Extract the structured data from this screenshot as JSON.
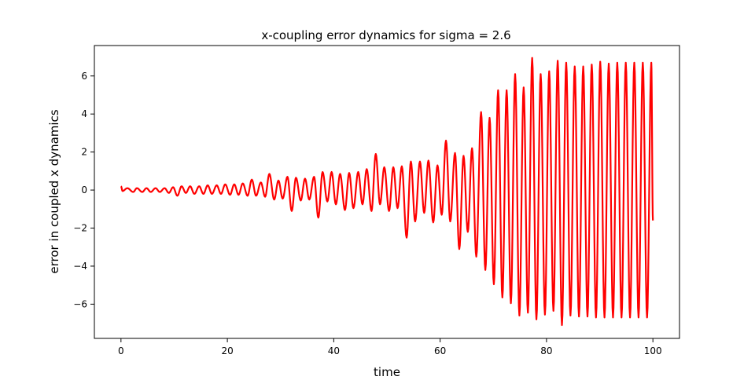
{
  "chart_data": {
    "type": "line",
    "title": "x-coupling error dynamics for sigma = 2.6",
    "xlabel": "time",
    "ylabel": "error in coupled x dynamics",
    "xlim": [
      -5,
      105
    ],
    "ylim": [
      -7.8,
      7.6
    ],
    "xticks": [
      0,
      20,
      40,
      60,
      80,
      100
    ],
    "yticks": [
      -6,
      -4,
      -2,
      0,
      2,
      4,
      6
    ],
    "xtick_labels": [
      "0",
      "20",
      "40",
      "60",
      "80",
      "100"
    ],
    "ytick_labels": [
      "−6",
      "−4",
      "−2",
      "0",
      "2",
      "4",
      "6"
    ],
    "grid": false,
    "series": [
      {
        "color": "#ff0000",
        "x_start": 0,
        "x_end": 100,
        "final_value": -1.6,
        "peaks": [
          [
            0.0,
            0.2
          ],
          [
            0.3,
            -0.05
          ],
          [
            1.2,
            0.1
          ],
          [
            2.3,
            -0.1
          ],
          [
            3.0,
            0.1
          ],
          [
            4.0,
            -0.1
          ],
          [
            4.8,
            0.1
          ],
          [
            5.6,
            -0.1
          ],
          [
            6.5,
            0.1
          ],
          [
            7.3,
            -0.1
          ],
          [
            8.2,
            0.1
          ],
          [
            9.0,
            -0.15
          ],
          [
            9.8,
            0.15
          ],
          [
            10.6,
            -0.3
          ],
          [
            11.4,
            0.2
          ],
          [
            12.2,
            -0.15
          ],
          [
            13.0,
            0.2
          ],
          [
            13.8,
            -0.2
          ],
          [
            14.7,
            0.2
          ],
          [
            15.5,
            -0.2
          ],
          [
            16.3,
            0.25
          ],
          [
            17.1,
            -0.2
          ],
          [
            18.0,
            0.25
          ],
          [
            18.8,
            -0.2
          ],
          [
            19.6,
            0.3
          ],
          [
            20.5,
            -0.25
          ],
          [
            21.3,
            0.3
          ],
          [
            22.1,
            -0.25
          ],
          [
            22.9,
            0.35
          ],
          [
            23.8,
            -0.3
          ],
          [
            24.6,
            0.55
          ],
          [
            25.4,
            -0.3
          ],
          [
            26.3,
            0.4
          ],
          [
            27.1,
            -0.35
          ],
          [
            27.9,
            0.85
          ],
          [
            28.8,
            -0.5
          ],
          [
            29.6,
            0.5
          ],
          [
            30.4,
            -0.45
          ],
          [
            31.3,
            0.7
          ],
          [
            32.1,
            -1.1
          ],
          [
            32.9,
            0.65
          ],
          [
            33.8,
            -0.55
          ],
          [
            34.6,
            0.6
          ],
          [
            35.4,
            -0.5
          ],
          [
            36.3,
            0.7
          ],
          [
            37.1,
            -1.45
          ],
          [
            37.9,
            0.95
          ],
          [
            38.8,
            -0.6
          ],
          [
            39.6,
            0.95
          ],
          [
            40.4,
            -0.75
          ],
          [
            41.2,
            0.85
          ],
          [
            42.1,
            -1.05
          ],
          [
            42.9,
            0.9
          ],
          [
            43.7,
            -0.95
          ],
          [
            44.6,
            0.95
          ],
          [
            45.4,
            -0.75
          ],
          [
            46.2,
            1.1
          ],
          [
            47.1,
            -1.1
          ],
          [
            47.9,
            1.9
          ],
          [
            48.7,
            -0.75
          ],
          [
            49.5,
            1.2
          ],
          [
            50.4,
            -1.1
          ],
          [
            51.2,
            1.2
          ],
          [
            52.0,
            -0.95
          ],
          [
            52.8,
            1.25
          ],
          [
            53.7,
            -2.5
          ],
          [
            54.5,
            1.5
          ],
          [
            55.3,
            -1.65
          ],
          [
            56.2,
            1.5
          ],
          [
            57.0,
            -1.2
          ],
          [
            57.8,
            1.55
          ],
          [
            58.7,
            -1.7
          ],
          [
            59.5,
            1.3
          ],
          [
            60.3,
            -1.3
          ],
          [
            61.1,
            2.6
          ],
          [
            61.9,
            -1.65
          ],
          [
            62.8,
            1.95
          ],
          [
            63.6,
            -3.1
          ],
          [
            64.4,
            1.8
          ],
          [
            65.2,
            -2.2
          ],
          [
            66.0,
            2.2
          ],
          [
            66.8,
            -3.5
          ],
          [
            67.7,
            4.1
          ],
          [
            68.5,
            -4.2
          ],
          [
            69.3,
            3.8
          ],
          [
            70.1,
            -4.95
          ],
          [
            70.9,
            5.25
          ],
          [
            71.7,
            -5.65
          ],
          [
            72.5,
            5.25
          ],
          [
            73.3,
            -5.95
          ],
          [
            74.1,
            6.1
          ],
          [
            74.9,
            -6.6
          ],
          [
            75.7,
            5.4
          ],
          [
            76.5,
            -6.45
          ],
          [
            77.3,
            6.95
          ],
          [
            78.1,
            -6.8
          ],
          [
            78.9,
            6.1
          ],
          [
            79.7,
            -6.55
          ],
          [
            80.5,
            6.25
          ],
          [
            81.3,
            -6.35
          ],
          [
            82.1,
            6.8
          ],
          [
            82.9,
            -7.1
          ],
          [
            83.7,
            6.7
          ],
          [
            84.5,
            -6.6
          ],
          [
            85.3,
            6.5
          ],
          [
            86.1,
            -6.65
          ],
          [
            86.9,
            6.5
          ],
          [
            87.7,
            -6.65
          ],
          [
            88.5,
            6.6
          ],
          [
            89.3,
            -6.7
          ],
          [
            90.1,
            6.75
          ],
          [
            90.9,
            -6.7
          ],
          [
            91.7,
            6.65
          ],
          [
            92.5,
            -6.7
          ],
          [
            93.3,
            6.7
          ],
          [
            94.1,
            -6.7
          ],
          [
            94.9,
            6.7
          ],
          [
            95.7,
            -6.7
          ],
          [
            96.5,
            6.7
          ],
          [
            97.3,
            -6.7
          ],
          [
            98.1,
            6.7
          ],
          [
            98.9,
            -6.7
          ],
          [
            99.7,
            6.7
          ]
        ]
      }
    ]
  }
}
